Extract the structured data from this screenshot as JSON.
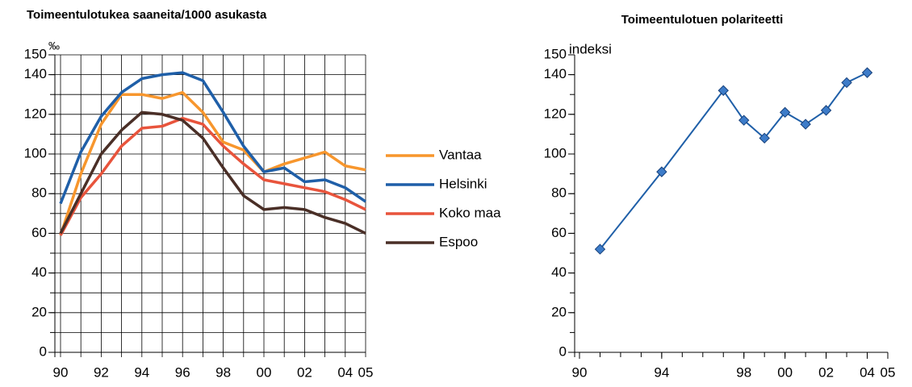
{
  "chart_data": [
    {
      "type": "line",
      "title": "Toimeentulotukea saaneita/1000 asukasta",
      "y_label": "‰",
      "categories": [
        "90",
        null,
        "92",
        null,
        "94",
        null,
        "96",
        null,
        "98",
        null,
        "00",
        null,
        "02",
        null,
        "04",
        "05"
      ],
      "series": [
        {
          "name": "Vantaa",
          "color": "#f7962d",
          "values": [
            59,
            90,
            115,
            130,
            130,
            128,
            131,
            121,
            106,
            102,
            91,
            95,
            98,
            101,
            94,
            92
          ]
        },
        {
          "name": "Helsinki",
          "color": "#1f5fa8",
          "values": [
            75,
            101,
            119,
            131,
            138,
            140,
            141,
            137,
            121,
            104,
            91,
            93,
            86,
            87,
            83,
            76
          ]
        },
        {
          "name": "Koko maa",
          "color": "#e8543c",
          "values": [
            59,
            78,
            90,
            104,
            113,
            114,
            118,
            115,
            104,
            95,
            87,
            85,
            83,
            81,
            77,
            72
          ]
        },
        {
          "name": "Espoo",
          "color": "#4a2f27",
          "values": [
            60,
            80,
            100,
            112,
            121,
            120,
            117,
            108,
            93,
            79,
            72,
            73,
            72,
            68,
            65,
            60
          ]
        }
      ],
      "ylim": [
        0,
        150
      ],
      "yticks": [
        0,
        20,
        40,
        60,
        80,
        100,
        120,
        140,
        150
      ],
      "grid": true,
      "legend": "right"
    },
    {
      "type": "scatterline",
      "title": "Toimeentulotuen polariteetti",
      "y_label": "indeksi",
      "x": [
        91,
        94,
        97,
        98,
        99,
        100,
        101,
        102,
        103,
        104
      ],
      "values": [
        52,
        91,
        132,
        117,
        108,
        121,
        115,
        122,
        136,
        141
      ],
      "color": "#1f5fa8",
      "xlim": [
        90,
        105
      ],
      "xticks": [
        90,
        94,
        98,
        {
          "value": 100,
          "label": "00"
        },
        {
          "value": 102,
          "label": "02"
        },
        {
          "value": 104,
          "label": "04"
        },
        {
          "value": 105,
          "label": "05"
        }
      ],
      "ylim": [
        0,
        150
      ],
      "yticks": [
        0,
        20,
        40,
        60,
        80,
        100,
        120,
        140,
        150
      ],
      "grid": false
    }
  ]
}
